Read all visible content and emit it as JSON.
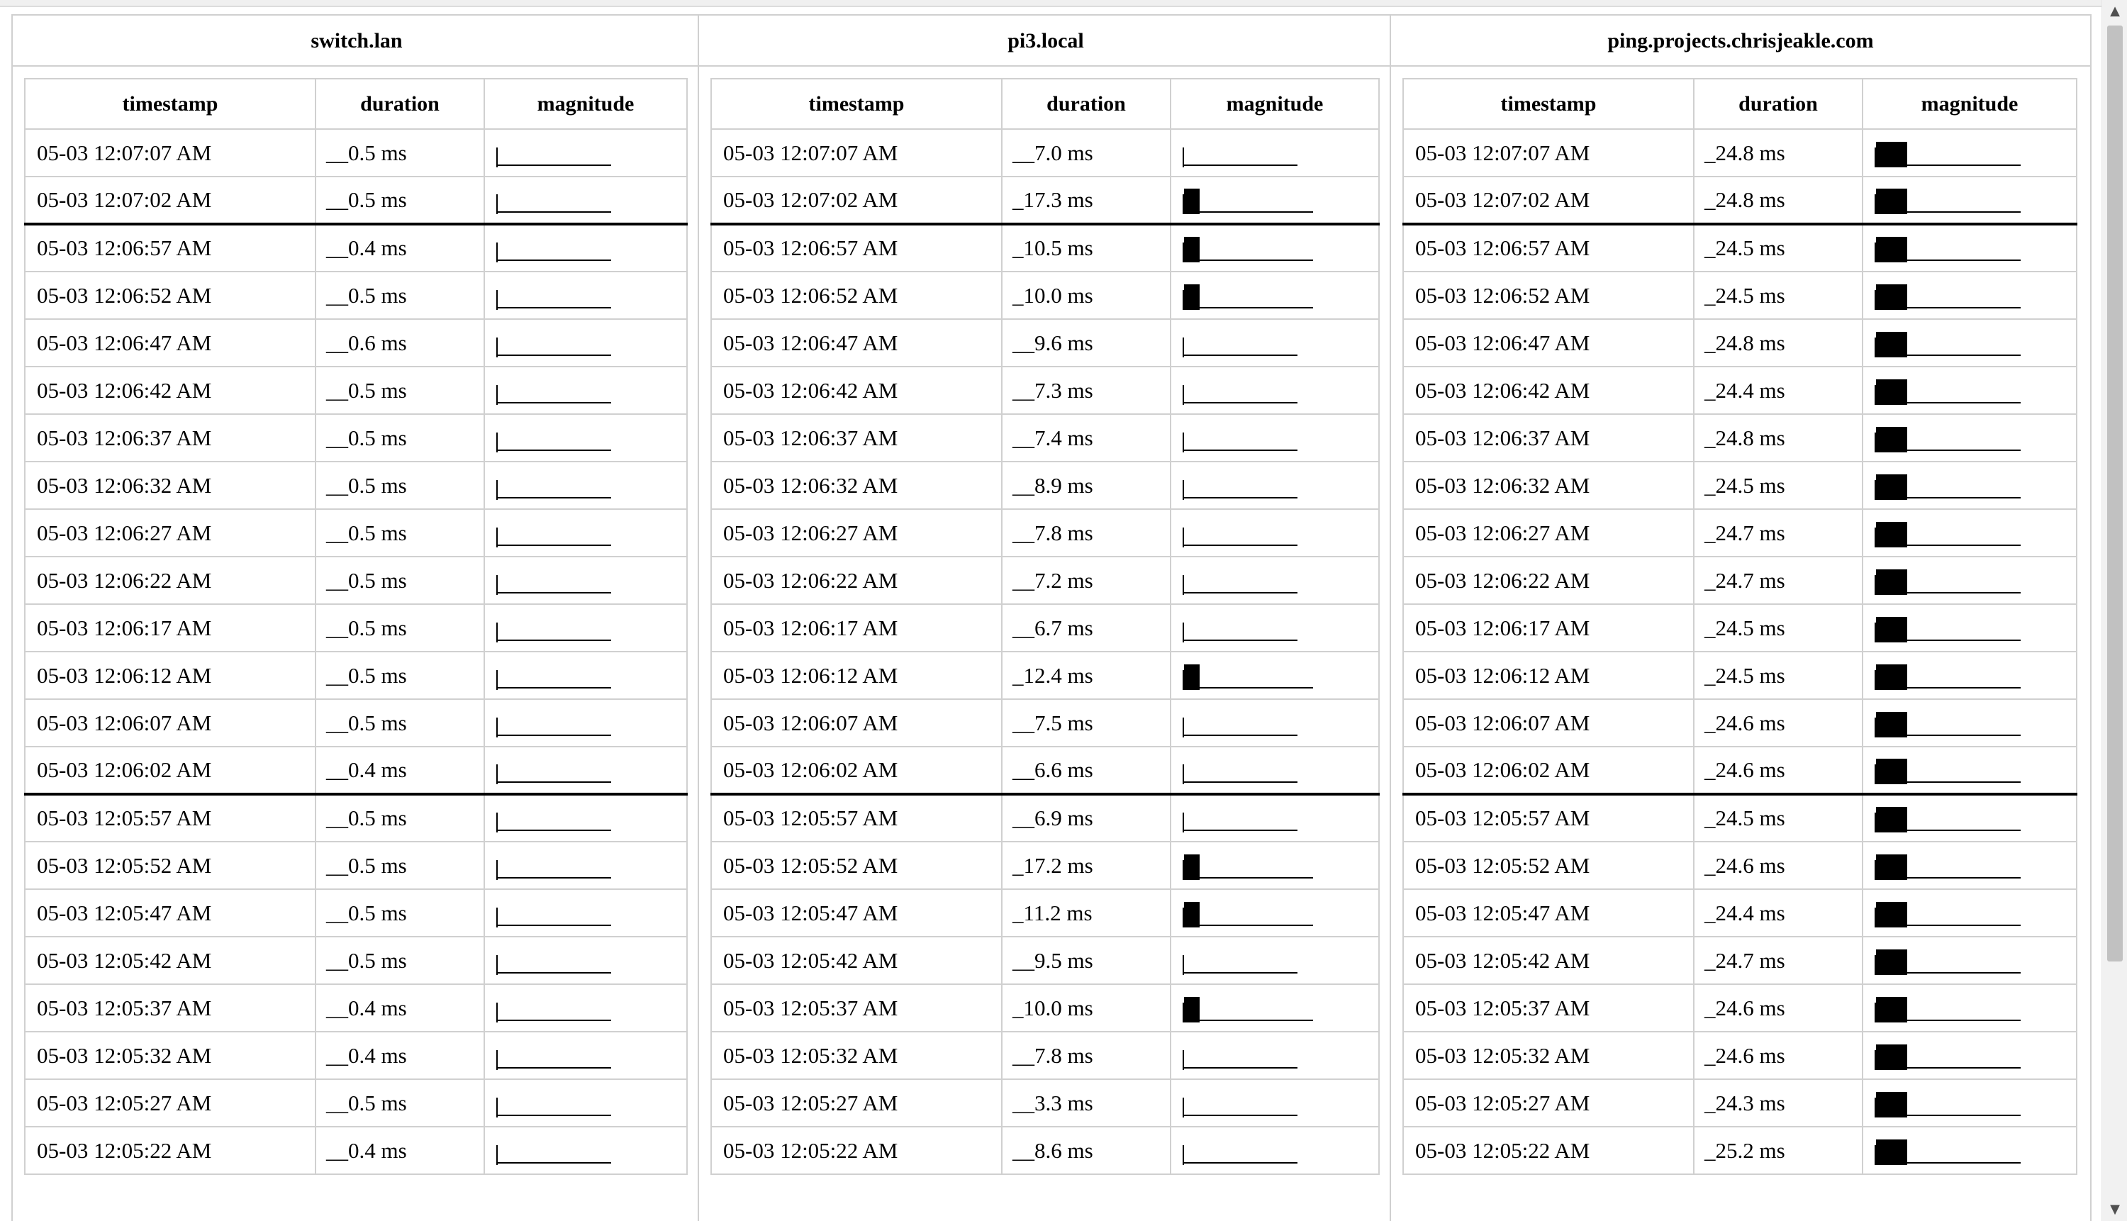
{
  "table_headers": {
    "timestamp": "timestamp",
    "duration": "duration",
    "magnitude": "magnitude"
  },
  "unit": "ms",
  "hosts": [
    {
      "name": "switch.lan",
      "rows": [
        {
          "timestamp": "05-03 12:07:07 AM",
          "duration": "0.5"
        },
        {
          "timestamp": "05-03 12:07:02 AM",
          "duration": "0.5"
        },
        {
          "timestamp": "05-03 12:06:57 AM",
          "duration": "0.4"
        },
        {
          "timestamp": "05-03 12:06:52 AM",
          "duration": "0.5"
        },
        {
          "timestamp": "05-03 12:06:47 AM",
          "duration": "0.6"
        },
        {
          "timestamp": "05-03 12:06:42 AM",
          "duration": "0.5"
        },
        {
          "timestamp": "05-03 12:06:37 AM",
          "duration": "0.5"
        },
        {
          "timestamp": "05-03 12:06:32 AM",
          "duration": "0.5"
        },
        {
          "timestamp": "05-03 12:06:27 AM",
          "duration": "0.5"
        },
        {
          "timestamp": "05-03 12:06:22 AM",
          "duration": "0.5"
        },
        {
          "timestamp": "05-03 12:06:17 AM",
          "duration": "0.5"
        },
        {
          "timestamp": "05-03 12:06:12 AM",
          "duration": "0.5"
        },
        {
          "timestamp": "05-03 12:06:07 AM",
          "duration": "0.5"
        },
        {
          "timestamp": "05-03 12:06:02 AM",
          "duration": "0.4"
        },
        {
          "timestamp": "05-03 12:05:57 AM",
          "duration": "0.5"
        },
        {
          "timestamp": "05-03 12:05:52 AM",
          "duration": "0.5"
        },
        {
          "timestamp": "05-03 12:05:47 AM",
          "duration": "0.5"
        },
        {
          "timestamp": "05-03 12:05:42 AM",
          "duration": "0.5"
        },
        {
          "timestamp": "05-03 12:05:37 AM",
          "duration": "0.4"
        },
        {
          "timestamp": "05-03 12:05:32 AM",
          "duration": "0.4"
        },
        {
          "timestamp": "05-03 12:05:27 AM",
          "duration": "0.5"
        },
        {
          "timestamp": "05-03 12:05:22 AM",
          "duration": "0.4"
        }
      ]
    },
    {
      "name": "pi3.local",
      "rows": [
        {
          "timestamp": "05-03 12:07:07 AM",
          "duration": "7.0"
        },
        {
          "timestamp": "05-03 12:07:02 AM",
          "duration": "17.3"
        },
        {
          "timestamp": "05-03 12:06:57 AM",
          "duration": "10.5"
        },
        {
          "timestamp": "05-03 12:06:52 AM",
          "duration": "10.0"
        },
        {
          "timestamp": "05-03 12:06:47 AM",
          "duration": "9.6"
        },
        {
          "timestamp": "05-03 12:06:42 AM",
          "duration": "7.3"
        },
        {
          "timestamp": "05-03 12:06:37 AM",
          "duration": "7.4"
        },
        {
          "timestamp": "05-03 12:06:32 AM",
          "duration": "8.9"
        },
        {
          "timestamp": "05-03 12:06:27 AM",
          "duration": "7.8"
        },
        {
          "timestamp": "05-03 12:06:22 AM",
          "duration": "7.2"
        },
        {
          "timestamp": "05-03 12:06:17 AM",
          "duration": "6.7"
        },
        {
          "timestamp": "05-03 12:06:12 AM",
          "duration": "12.4"
        },
        {
          "timestamp": "05-03 12:06:07 AM",
          "duration": "7.5"
        },
        {
          "timestamp": "05-03 12:06:02 AM",
          "duration": "6.6"
        },
        {
          "timestamp": "05-03 12:05:57 AM",
          "duration": "6.9"
        },
        {
          "timestamp": "05-03 12:05:52 AM",
          "duration": "17.2"
        },
        {
          "timestamp": "05-03 12:05:47 AM",
          "duration": "11.2"
        },
        {
          "timestamp": "05-03 12:05:42 AM",
          "duration": "9.5"
        },
        {
          "timestamp": "05-03 12:05:37 AM",
          "duration": "10.0"
        },
        {
          "timestamp": "05-03 12:05:32 AM",
          "duration": "7.8"
        },
        {
          "timestamp": "05-03 12:05:27 AM",
          "duration": "3.3"
        },
        {
          "timestamp": "05-03 12:05:22 AM",
          "duration": "8.6"
        }
      ]
    },
    {
      "name": "ping.projects.chrisjeakle.com",
      "rows": [
        {
          "timestamp": "05-03 12:07:07 AM",
          "duration": "24.8"
        },
        {
          "timestamp": "05-03 12:07:02 AM",
          "duration": "24.8"
        },
        {
          "timestamp": "05-03 12:06:57 AM",
          "duration": "24.5"
        },
        {
          "timestamp": "05-03 12:06:52 AM",
          "duration": "24.5"
        },
        {
          "timestamp": "05-03 12:06:47 AM",
          "duration": "24.8"
        },
        {
          "timestamp": "05-03 12:06:42 AM",
          "duration": "24.4"
        },
        {
          "timestamp": "05-03 12:06:37 AM",
          "duration": "24.8"
        },
        {
          "timestamp": "05-03 12:06:32 AM",
          "duration": "24.5"
        },
        {
          "timestamp": "05-03 12:06:27 AM",
          "duration": "24.7"
        },
        {
          "timestamp": "05-03 12:06:22 AM",
          "duration": "24.7"
        },
        {
          "timestamp": "05-03 12:06:17 AM",
          "duration": "24.5"
        },
        {
          "timestamp": "05-03 12:06:12 AM",
          "duration": "24.5"
        },
        {
          "timestamp": "05-03 12:06:07 AM",
          "duration": "24.6"
        },
        {
          "timestamp": "05-03 12:06:02 AM",
          "duration": "24.6"
        },
        {
          "timestamp": "05-03 12:05:57 AM",
          "duration": "24.5"
        },
        {
          "timestamp": "05-03 12:05:52 AM",
          "duration": "24.6"
        },
        {
          "timestamp": "05-03 12:05:47 AM",
          "duration": "24.4"
        },
        {
          "timestamp": "05-03 12:05:42 AM",
          "duration": "24.7"
        },
        {
          "timestamp": "05-03 12:05:37 AM",
          "duration": "24.6"
        },
        {
          "timestamp": "05-03 12:05:32 AM",
          "duration": "24.6"
        },
        {
          "timestamp": "05-03 12:05:27 AM",
          "duration": "24.3"
        },
        {
          "timestamp": "05-03 12:05:22 AM",
          "duration": "25.2"
        }
      ]
    }
  ],
  "scrollbar": {
    "up_icon": "triangle-up-icon",
    "down_icon": "triangle-down-icon"
  }
}
